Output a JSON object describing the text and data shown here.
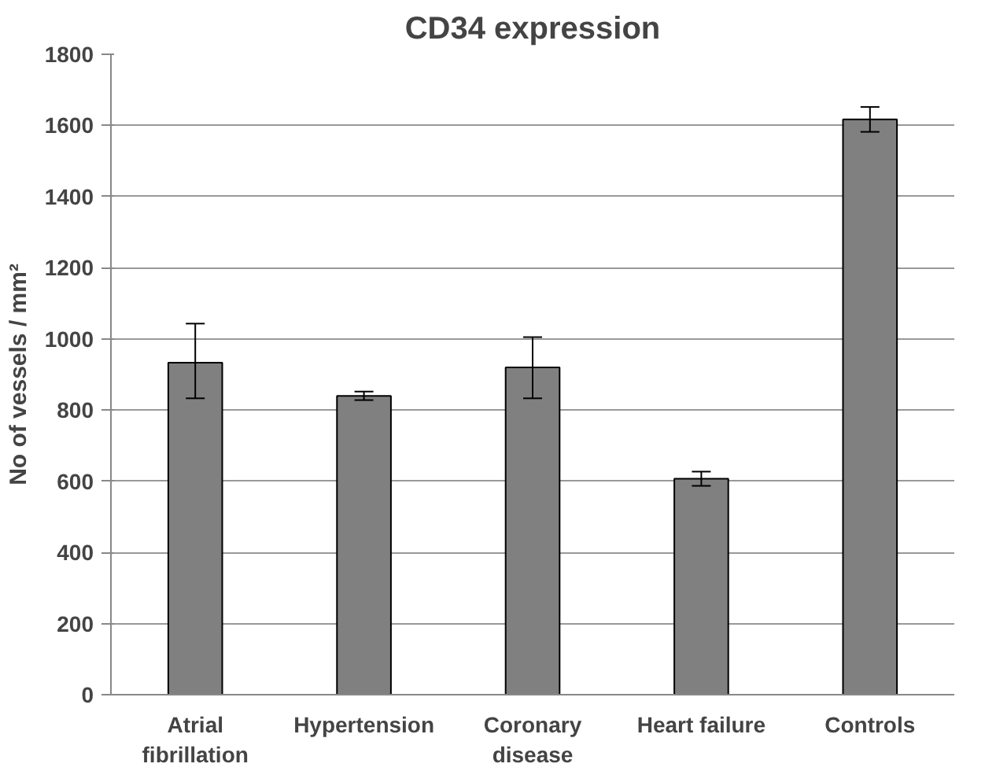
{
  "chart_data": {
    "type": "bar",
    "title": "CD34 expression",
    "ylabel": "No of vessels / mm²",
    "categories": [
      "Atrial\nfibrillation",
      "Hypertension",
      "Coronary\ndisease",
      "Heart failure",
      "Controls"
    ],
    "values": [
      933,
      840,
      920,
      607,
      1617
    ],
    "errors": [
      [
        833,
        1043
      ],
      [
        828,
        852
      ],
      [
        833,
        1005
      ],
      [
        587,
        627
      ],
      [
        1582,
        1652
      ]
    ],
    "color": "#808080",
    "ylim": [
      0,
      1800
    ],
    "yticks": [
      0,
      200,
      400,
      600,
      800,
      1000,
      1200,
      1400,
      1600,
      1800
    ],
    "grid": "y"
  }
}
